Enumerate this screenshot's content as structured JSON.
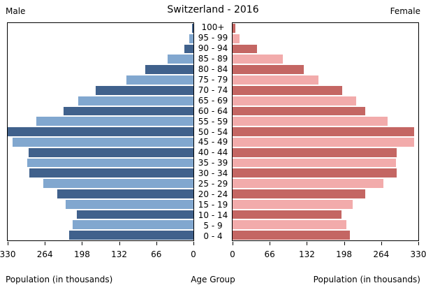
{
  "header": {
    "title": "Switzerland - 2016",
    "male_label": "Male",
    "female_label": "Female"
  },
  "footer": {
    "left_axis_label": "Population (in thousands)",
    "center_label": "Age Group",
    "right_axis_label": "Population (in thousands)"
  },
  "colors": {
    "male_dark": "#40618c",
    "male_light": "#81a7cf",
    "female_dark": "#c46663",
    "female_light": "#f2abab",
    "axis": "#000000",
    "background": "#ffffff"
  },
  "chart_data": {
    "type": "bar",
    "subtype": "population-pyramid",
    "title": "Switzerland - 2016",
    "categories": [
      "100+",
      "95 - 99",
      "90 - 94",
      "85 - 89",
      "80 - 84",
      "75 - 79",
      "70 - 74",
      "65 - 69",
      "60 - 64",
      "55 - 59",
      "50 - 54",
      "45 - 49",
      "40 - 44",
      "35 - 39",
      "30 - 34",
      "25 - 29",
      "20 - 24",
      "15 - 19",
      "10 - 14",
      "5 - 9",
      "0 - 4"
    ],
    "series": [
      {
        "name": "Male",
        "values": [
          2,
          7,
          16,
          46,
          86,
          119,
          174,
          205,
          231,
          279,
          330,
          321,
          293,
          295,
          291,
          267,
          242,
          227,
          207,
          215,
          221
        ]
      },
      {
        "name": "Female",
        "values": [
          5,
          12,
          44,
          89,
          126,
          152,
          195,
          220,
          236,
          276,
          323,
          322,
          292,
          290,
          291,
          268,
          236,
          213,
          194,
          202,
          209
        ]
      }
    ],
    "xlabel": "Population (in thousands)",
    "ylabel": "Age Group",
    "xlim": [
      0,
      330
    ],
    "x_ticks": [
      330,
      264,
      198,
      132,
      66,
      0
    ],
    "grid": false,
    "legend": "none"
  }
}
